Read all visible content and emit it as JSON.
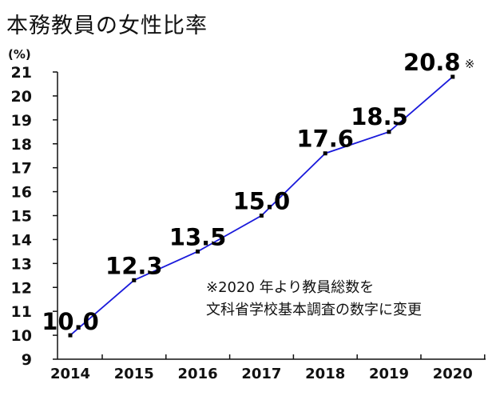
{
  "chart_data": {
    "type": "line",
    "title": "本務教員の女性比率",
    "yunit": "(%)",
    "x": [
      "2014",
      "2015",
      "2016",
      "2017",
      "2018",
      "2019",
      "2020"
    ],
    "series": [
      {
        "values": [
          10.0,
          12.3,
          13.5,
          15.0,
          17.6,
          18.5,
          20.8
        ]
      }
    ],
    "data_labels": [
      "10.0",
      "12.3",
      "13.5",
      "15.0",
      "17.6",
      "18.5",
      "20.8"
    ],
    "last_label_mark": "※",
    "ylim": [
      9,
      21
    ],
    "yticks": [
      "9",
      "10",
      "11",
      "12",
      "13",
      "14",
      "15",
      "16",
      "17",
      "18",
      "19",
      "20",
      "21"
    ],
    "line_color": "#1a1adb",
    "grid": false,
    "note_lines": [
      "※2020 年より教員総数を",
      "文科省学校基本調査の数字に変更"
    ]
  }
}
